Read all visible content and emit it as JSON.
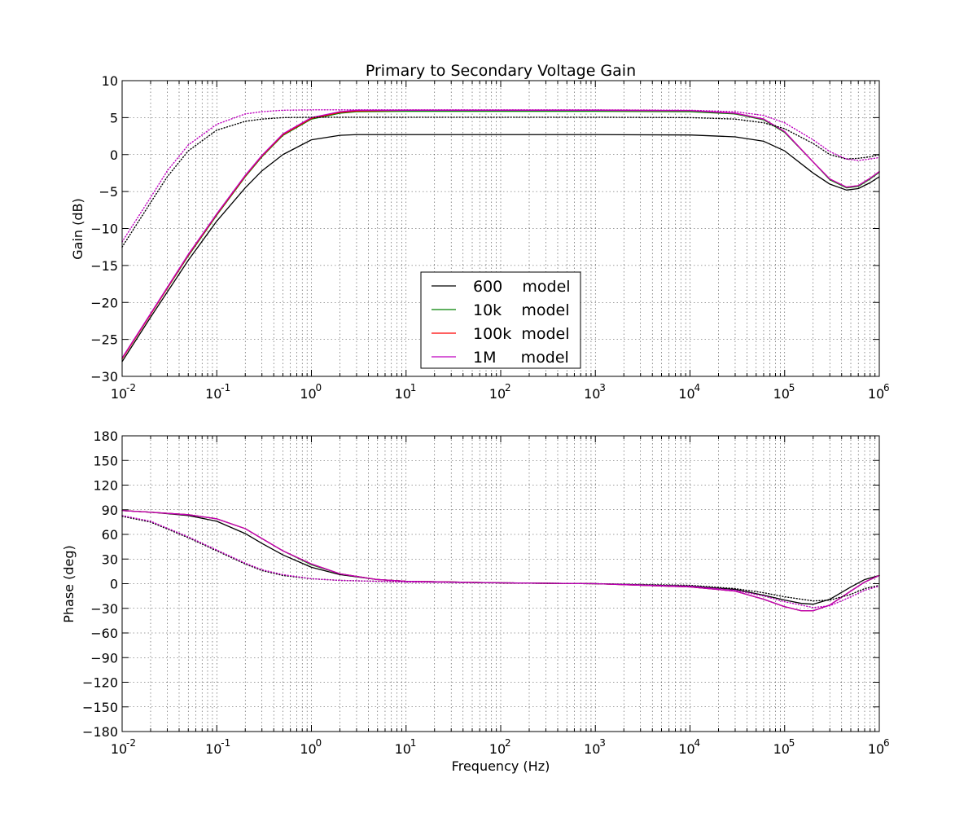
{
  "colors": {
    "600": "#000000",
    "10k": "#008000",
    "100k": "#ff0000",
    "1M": "#bf00bf"
  },
  "chart_data": [
    {
      "type": "line",
      "title": "Primary to Secondary Voltage Gain",
      "xlabel": "",
      "ylabel": "Gain (dB)",
      "xscale": "log",
      "xlim": [
        0.01,
        1000000
      ],
      "ylim": [
        -30,
        10
      ],
      "xticks": [
        "10",
        "10",
        "10",
        "10",
        "10",
        "10",
        "10",
        "10",
        "10"
      ],
      "xtick_exponents": [
        "-2",
        "-1",
        "0",
        "1",
        "2",
        "3",
        "4",
        "5",
        "6"
      ],
      "yticks": [
        "10",
        "5",
        "0",
        "−5",
        "−10",
        "−15",
        "−20",
        "−25",
        "−30"
      ],
      "grid": true,
      "legend": {
        "placement": "lower-center",
        "entries": [
          {
            "key": "600",
            "label": "600    model"
          },
          {
            "key": "10k",
            "label": "10k    model"
          },
          {
            "key": "100k",
            "label": "100k  model"
          },
          {
            "key": "1M",
            "label": "1M     model"
          }
        ]
      },
      "series": [
        {
          "key": "600",
          "style": "solid",
          "x": [
            0.01,
            0.02,
            0.05,
            0.1,
            0.2,
            0.3,
            0.5,
            1,
            2,
            3,
            10,
            100,
            1000,
            10000,
            30000,
            60000,
            100000,
            200000,
            300000,
            450000,
            600000,
            800000,
            1000000
          ],
          "y": [
            -28.0,
            -22.0,
            -14.3,
            -9.0,
            -4.5,
            -2.2,
            0.0,
            2.0,
            2.6,
            2.7,
            2.7,
            2.7,
            2.7,
            2.65,
            2.4,
            1.8,
            0.5,
            -2.5,
            -4.0,
            -4.8,
            -4.6,
            -3.8,
            -3.0
          ]
        },
        {
          "key": "10k",
          "style": "solid",
          "x": [
            0.01,
            0.02,
            0.05,
            0.1,
            0.2,
            0.3,
            0.5,
            1,
            2,
            3,
            10,
            100,
            1000,
            10000,
            30000,
            60000,
            100000,
            200000,
            300000,
            450000,
            600000,
            800000,
            1000000
          ],
          "y": [
            -27.6,
            -21.6,
            -13.7,
            -8.2,
            -3.0,
            -0.3,
            2.6,
            4.8,
            5.6,
            5.8,
            5.85,
            5.85,
            5.85,
            5.8,
            5.5,
            4.7,
            3.0,
            -1.0,
            -3.4,
            -4.5,
            -4.3,
            -3.3,
            -2.4
          ]
        },
        {
          "key": "100k",
          "style": "solid",
          "x": [
            0.01,
            0.02,
            0.05,
            0.1,
            0.2,
            0.3,
            0.5,
            1,
            2,
            3,
            10,
            100,
            1000,
            10000,
            30000,
            60000,
            100000,
            200000,
            300000,
            450000,
            600000,
            800000,
            1000000
          ],
          "y": [
            -27.6,
            -21.6,
            -13.6,
            -8.1,
            -2.9,
            -0.2,
            2.7,
            4.9,
            5.7,
            5.9,
            6.0,
            6.0,
            6.0,
            5.95,
            5.6,
            4.8,
            3.1,
            -1.0,
            -3.3,
            -4.4,
            -4.2,
            -3.2,
            -2.3
          ]
        },
        {
          "key": "1M",
          "style": "solid",
          "x": [
            0.01,
            0.02,
            0.05,
            0.1,
            0.2,
            0.3,
            0.5,
            1,
            2,
            3,
            10,
            100,
            1000,
            10000,
            30000,
            60000,
            100000,
            200000,
            300000,
            450000,
            600000,
            800000,
            1000000
          ],
          "y": [
            -27.5,
            -21.5,
            -13.5,
            -8.0,
            -2.8,
            -0.1,
            2.8,
            5.0,
            5.8,
            6.0,
            6.0,
            6.0,
            6.0,
            5.95,
            5.6,
            4.8,
            3.1,
            -1.0,
            -3.3,
            -4.4,
            -4.2,
            -3.2,
            -2.3
          ]
        },
        {
          "key": "600",
          "style": "dotted",
          "x": [
            0.01,
            0.02,
            0.03,
            0.05,
            0.1,
            0.2,
            0.3,
            0.5,
            1,
            10,
            100,
            1000,
            10000,
            30000,
            60000,
            100000,
            200000,
            300000,
            450000,
            600000,
            800000,
            1000000
          ],
          "y": [
            -12.5,
            -6.5,
            -3.0,
            0.5,
            3.3,
            4.5,
            4.8,
            5.0,
            5.05,
            5.05,
            5.05,
            5.05,
            5.0,
            4.8,
            4.3,
            3.5,
            1.5,
            0.0,
            -0.6,
            -0.5,
            -0.3,
            0.0
          ]
        },
        {
          "key": "1M",
          "style": "dotted",
          "x": [
            0.01,
            0.02,
            0.03,
            0.05,
            0.1,
            0.2,
            0.3,
            0.5,
            1,
            10,
            100,
            1000,
            10000,
            30000,
            60000,
            100000,
            200000,
            300000,
            450000,
            600000,
            800000,
            1000000
          ],
          "y": [
            -11.8,
            -5.8,
            -2.2,
            1.3,
            4.1,
            5.5,
            5.8,
            6.0,
            6.05,
            6.05,
            6.05,
            6.05,
            6.0,
            5.8,
            5.3,
            4.3,
            2.0,
            0.4,
            -0.6,
            -0.8,
            -0.6,
            -0.4
          ]
        }
      ]
    },
    {
      "type": "line",
      "title": "",
      "xlabel": "Frequency (Hz)",
      "ylabel": "Phase (deg)",
      "xscale": "log",
      "xlim": [
        0.01,
        1000000
      ],
      "ylim": [
        -180,
        180
      ],
      "xticks": [
        "10",
        "10",
        "10",
        "10",
        "10",
        "10",
        "10",
        "10",
        "10"
      ],
      "xtick_exponents": [
        "-2",
        "-1",
        "0",
        "1",
        "2",
        "3",
        "4",
        "5",
        "6"
      ],
      "yticks": [
        "180",
        "150",
        "120",
        "90",
        "60",
        "30",
        "0",
        "−30",
        "−60",
        "−90",
        "−120",
        "−150",
        "−180"
      ],
      "grid": true,
      "series": [
        {
          "key": "600",
          "style": "solid",
          "x": [
            0.01,
            0.02,
            0.05,
            0.1,
            0.2,
            0.3,
            0.5,
            1,
            2,
            5,
            10,
            100,
            1000,
            10000,
            30000,
            60000,
            100000,
            150000,
            200000,
            300000,
            500000,
            700000,
            1000000
          ],
          "y": [
            89,
            87,
            83,
            76,
            61,
            49,
            35,
            20,
            11,
            5,
            3,
            1,
            0,
            -3,
            -7,
            -14,
            -20,
            -24,
            -25,
            -19,
            -4,
            5,
            10
          ]
        },
        {
          "key": "10k",
          "style": "solid",
          "x": [
            0.01,
            0.02,
            0.05,
            0.1,
            0.2,
            0.3,
            0.5,
            1,
            2,
            5,
            10,
            100,
            1000,
            10000,
            30000,
            60000,
            100000,
            150000,
            200000,
            300000,
            500000,
            700000,
            1000000
          ],
          "y": [
            89,
            87,
            84,
            79,
            67,
            55,
            40,
            23,
            12,
            5,
            3,
            1,
            0,
            -4,
            -9,
            -19,
            -28,
            -33,
            -33,
            -26,
            -9,
            2,
            10
          ]
        },
        {
          "key": "100k",
          "style": "solid",
          "x": [
            0.01,
            0.02,
            0.05,
            0.1,
            0.2,
            0.3,
            0.5,
            1,
            2,
            5,
            10,
            100,
            1000,
            10000,
            30000,
            60000,
            100000,
            150000,
            200000,
            300000,
            500000,
            700000,
            1000000
          ],
          "y": [
            89,
            87,
            84,
            79,
            67,
            55,
            40,
            24,
            12,
            5,
            3,
            1,
            0,
            -4,
            -9,
            -19,
            -28,
            -33,
            -33,
            -26,
            -9,
            2,
            10
          ]
        },
        {
          "key": "1M",
          "style": "solid",
          "x": [
            0.01,
            0.02,
            0.05,
            0.1,
            0.2,
            0.3,
            0.5,
            1,
            2,
            5,
            10,
            100,
            1000,
            10000,
            30000,
            60000,
            100000,
            150000,
            200000,
            300000,
            500000,
            700000,
            1000000
          ],
          "y": [
            89,
            87,
            84,
            79,
            67,
            55,
            40,
            24,
            12,
            5,
            3,
            1,
            0,
            -4,
            -9,
            -19,
            -28,
            -33,
            -33,
            -26,
            -9,
            2,
            10
          ]
        },
        {
          "key": "600",
          "style": "dotted",
          "x": [
            0.01,
            0.02,
            0.05,
            0.1,
            0.2,
            0.3,
            0.5,
            1,
            2,
            10,
            100,
            1000,
            10000,
            30000,
            60000,
            100000,
            200000,
            300000,
            500000,
            700000,
            1000000
          ],
          "y": [
            82,
            75,
            56,
            40,
            24,
            16,
            10,
            6,
            4,
            2,
            1,
            0,
            -2,
            -6,
            -11,
            -16,
            -21,
            -20,
            -13,
            -6,
            -2
          ]
        },
        {
          "key": "1M",
          "style": "dotted",
          "x": [
            0.01,
            0.02,
            0.05,
            0.1,
            0.2,
            0.3,
            0.5,
            1,
            2,
            10,
            100,
            1000,
            10000,
            30000,
            60000,
            100000,
            200000,
            300000,
            500000,
            700000,
            1000000
          ],
          "y": [
            83,
            76,
            57,
            41,
            25,
            17,
            11,
            6,
            4,
            2,
            1,
            0,
            -3,
            -8,
            -15,
            -22,
            -29,
            -27,
            -16,
            -8,
            -3
          ]
        }
      ]
    }
  ]
}
